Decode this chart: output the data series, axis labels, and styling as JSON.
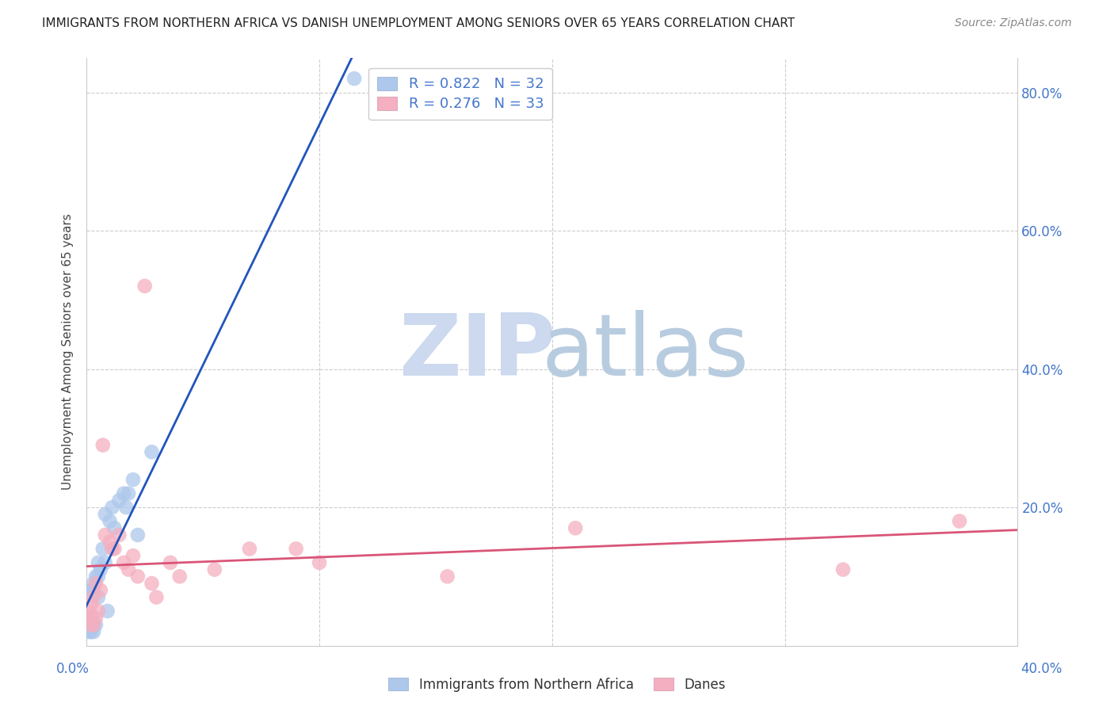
{
  "title": "IMMIGRANTS FROM NORTHERN AFRICA VS DANISH UNEMPLOYMENT AMONG SENIORS OVER 65 YEARS CORRELATION CHART",
  "source": "Source: ZipAtlas.com",
  "ylabel": "Unemployment Among Seniors over 65 years",
  "legend_label1": "Immigrants from Northern Africa",
  "legend_label2": "Danes",
  "r1": 0.822,
  "n1": 32,
  "r2": 0.276,
  "n2": 33,
  "blue_color": "#adc8eb",
  "pink_color": "#f4afc0",
  "blue_line_color": "#2255bb",
  "pink_line_color": "#d95578",
  "xlim": [
    0.0,
    0.4
  ],
  "ylim": [
    0.0,
    0.85
  ],
  "yticks": [
    0.0,
    0.2,
    0.4,
    0.6,
    0.8
  ],
  "blue_x": [
    0.001,
    0.001,
    0.001,
    0.002,
    0.002,
    0.002,
    0.002,
    0.003,
    0.003,
    0.003,
    0.003,
    0.004,
    0.004,
    0.005,
    0.005,
    0.005,
    0.006,
    0.007,
    0.008,
    0.008,
    0.009,
    0.01,
    0.011,
    0.012,
    0.014,
    0.016,
    0.017,
    0.018,
    0.02,
    0.022,
    0.028,
    0.115
  ],
  "blue_y": [
    0.02,
    0.03,
    0.04,
    0.02,
    0.03,
    0.04,
    0.08,
    0.02,
    0.03,
    0.08,
    0.09,
    0.1,
    0.03,
    0.07,
    0.1,
    0.12,
    0.11,
    0.14,
    0.12,
    0.19,
    0.05,
    0.18,
    0.2,
    0.17,
    0.21,
    0.22,
    0.2,
    0.22,
    0.24,
    0.16,
    0.28,
    0.82
  ],
  "pink_x": [
    0.001,
    0.001,
    0.002,
    0.002,
    0.003,
    0.003,
    0.004,
    0.004,
    0.005,
    0.006,
    0.007,
    0.008,
    0.01,
    0.011,
    0.012,
    0.014,
    0.016,
    0.018,
    0.02,
    0.022,
    0.025,
    0.028,
    0.03,
    0.036,
    0.04,
    0.055,
    0.07,
    0.09,
    0.1,
    0.155,
    0.21,
    0.325,
    0.375
  ],
  "pink_y": [
    0.04,
    0.05,
    0.03,
    0.06,
    0.03,
    0.07,
    0.04,
    0.09,
    0.05,
    0.08,
    0.29,
    0.16,
    0.15,
    0.14,
    0.14,
    0.16,
    0.12,
    0.11,
    0.13,
    0.1,
    0.52,
    0.09,
    0.07,
    0.12,
    0.1,
    0.11,
    0.14,
    0.14,
    0.12,
    0.1,
    0.17,
    0.11,
    0.18
  ],
  "blue_line_x": [
    -0.002,
    0.4
  ],
  "pink_line_x": [
    -0.002,
    0.4
  ]
}
